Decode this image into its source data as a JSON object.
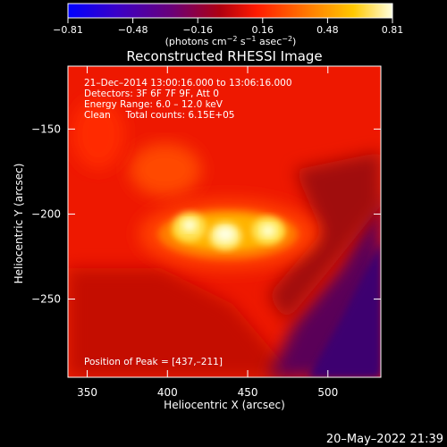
{
  "colorbar": {
    "ticks": [
      "−0.81",
      "−0.48",
      "−0.16",
      "0.16",
      "0.48",
      "0.81"
    ],
    "units_main": "(photons cm",
    "units_exp1": "−2",
    "units_mid1": " s",
    "units_exp2": "−1",
    "units_mid2": " asec",
    "units_exp3": "−2",
    "units_close": ")",
    "colors": [
      "#0000ff",
      "#3a00c8",
      "#6a0078",
      "#b00010",
      "#ff1a00",
      "#ff7a00",
      "#ffc800",
      "#ffffe0"
    ]
  },
  "plot": {
    "title": "Reconstructed RHESSI Image",
    "xlabel": "Heliocentric X (arcsec)",
    "ylabel": "Heliocentric Y (arcsec)",
    "x_ticks": [
      "350",
      "400",
      "450",
      "500"
    ],
    "y_ticks": [
      "−150",
      "−200",
      "−250"
    ],
    "x_range": [
      338,
      533
    ],
    "y_range": [
      -296,
      -113
    ],
    "info_lines": [
      "21–Dec–2014 13:00:16.000 to 13:06:16.000",
      "Detectors: 3F 6F 7F 9F, Att 0",
      "Energy Range: 6.0 – 12.0 keV",
      "Clean     Total counts: 6.15E+05"
    ],
    "peak_label": "Position of Peak = [437,–211]",
    "peak": [
      437,
      -211
    ]
  },
  "footer": {
    "timestamp": "20–May–2022 21:39"
  }
}
